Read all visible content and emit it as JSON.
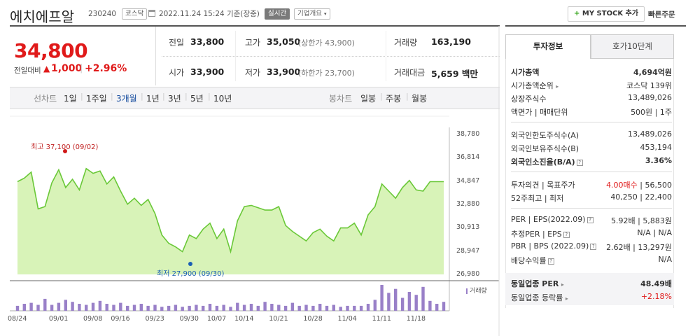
{
  "header": {
    "name": "에치에프알",
    "code": "230240",
    "market": "코스닥",
    "datetime": "2022.11.24 15:24 기준(장중)",
    "realtime": "실시간",
    "company_info": "기업개요",
    "mystock": "MY STOCK 추가",
    "quick_order": "빠른주문"
  },
  "price": {
    "current": "34,800",
    "prev_label": "전일대비",
    "change": "1,000",
    "change_pct": "+2.96%"
  },
  "stats": {
    "prev_close_label": "전일",
    "prev_close": "33,800",
    "high_label": "고가",
    "high": "35,050",
    "upper_limit": "(상한가 43,900)",
    "volume_label": "거래량",
    "volume": "163,190",
    "open_label": "시가",
    "open": "33,900",
    "low_label": "저가",
    "low": "33,900",
    "lower_limit": "(하한가 23,700)",
    "amount_label": "거래대금",
    "amount": "5,659 백만"
  },
  "chart_tabs": {
    "line_label": "선차트",
    "ranges": [
      "1일",
      "1주일",
      "3개월",
      "1년",
      "3년",
      "5년",
      "10년"
    ],
    "active": "3개월",
    "candle_label": "봉차트",
    "candles": [
      "일봉",
      "주봉",
      "월봉"
    ]
  },
  "right_tabs": {
    "invest": "투자정보",
    "hoga": "호가10단계"
  },
  "invest": {
    "cap_label": "시가총액",
    "cap": "4,694억원",
    "cap_rank_label": "시가총액순위",
    "cap_rank": "코스닥 139위",
    "shares_label": "상장주식수",
    "shares": "13,489,026",
    "par_label": "액면가 | 매매단위",
    "par": "500원 | 1주",
    "foreign_limit_label": "외국인한도주식수(A)",
    "foreign_limit": "13,489,026",
    "foreign_hold_label": "외국인보유주식수(B)",
    "foreign_hold": "453,194",
    "foreign_ratio_label": "외국인소진율(B/A)",
    "foreign_ratio": "3.36%",
    "opinion_label": "투자의견 | 목표주가",
    "opinion": "4.00매수",
    "target": "56,500",
    "w52_label": "52주최고 | 최저",
    "w52": "40,250 | 22,400",
    "per_label": "PER | EPS(2022.09)",
    "per": "5.92배 | 5,883원",
    "est_per_label": "추정PER | EPS",
    "est_per": "N/A | N/A",
    "pbr_label": "PBR | BPS (2022.09)",
    "pbr": "2.62배 | 13,297원",
    "div_label": "배당수익률",
    "div": "N/A",
    "ind_per_label": "동일업종 PER",
    "ind_per": "48.49배",
    "ind_rate_label": "동일업종 등락률",
    "ind_rate": "+2.18%"
  },
  "chart_data": {
    "type": "area",
    "x": [
      "08/24",
      "08/25",
      "08/26",
      "08/29",
      "08/30",
      "08/31",
      "09/01",
      "09/02",
      "09/05",
      "09/06",
      "09/07",
      "09/08",
      "09/13",
      "09/14",
      "09/15",
      "09/16",
      "09/19",
      "09/20",
      "09/21",
      "09/22",
      "09/23",
      "09/26",
      "09/27",
      "09/28",
      "09/29",
      "09/30",
      "10/04",
      "10/05",
      "10/06",
      "10/07",
      "10/11",
      "10/12",
      "10/13",
      "10/14",
      "10/17",
      "10/18",
      "10/19",
      "10/20",
      "10/21",
      "10/24",
      "10/25",
      "10/26",
      "10/27",
      "10/28",
      "10/31",
      "11/01",
      "11/02",
      "11/03",
      "11/04",
      "11/07",
      "11/08",
      "11/09",
      "11/10",
      "11/11",
      "11/14",
      "11/15",
      "11/16",
      "11/17",
      "11/18",
      "11/21",
      "11/22",
      "11/23",
      "11/24"
    ],
    "values": [
      34800,
      35100,
      35600,
      32500,
      32700,
      34700,
      35800,
      34300,
      35000,
      34100,
      35900,
      35500,
      35700,
      34600,
      35200,
      34000,
      32900,
      33400,
      32800,
      33300,
      32100,
      30300,
      29600,
      29300,
      28900,
      30300,
      30000,
      30800,
      31300,
      30000,
      30800,
      28900,
      31500,
      32700,
      32800,
      32600,
      32400,
      32400,
      32700,
      31100,
      30600,
      30200,
      29800,
      30500,
      30800,
      30200,
      29800,
      30900,
      30900,
      31300,
      30300,
      32000,
      32700,
      34600,
      34000,
      33400,
      34300,
      34900,
      34100,
      34000,
      34800,
      34800,
      34800
    ],
    "ylim": [
      26980,
      38780
    ],
    "yticks": [
      "38,780",
      "36,814",
      "34,847",
      "32,880",
      "30,913",
      "28,947",
      "26,980"
    ],
    "xticks": [
      "08/24",
      "09/01",
      "09/08",
      "09/16",
      "09/23",
      "09/30",
      "10/07",
      "10/14",
      "10/21",
      "10/28",
      "11/04",
      "11/11",
      "11/18"
    ],
    "max_label": "최고 37,100 (09/02)",
    "min_label": "최저 27,900 (09/30)",
    "volume_label": "거래량",
    "volume": [
      5,
      7,
      8,
      6,
      12,
      6,
      8,
      11,
      9,
      7,
      6,
      8,
      10,
      7,
      6,
      8,
      5,
      6,
      7,
      5,
      6,
      4,
      5,
      6,
      4,
      5,
      6,
      5,
      7,
      5,
      6,
      4,
      8,
      6,
      7,
      5,
      9,
      7,
      6,
      5,
      8,
      5,
      6,
      5,
      7,
      5,
      6,
      4,
      5,
      5,
      5,
      7,
      11,
      26,
      18,
      22,
      13,
      19,
      16,
      24,
      10,
      7,
      9
    ],
    "line_color": "#6ac838",
    "fill_color": "#d8f3b8",
    "volume_color": "#9980c8"
  }
}
